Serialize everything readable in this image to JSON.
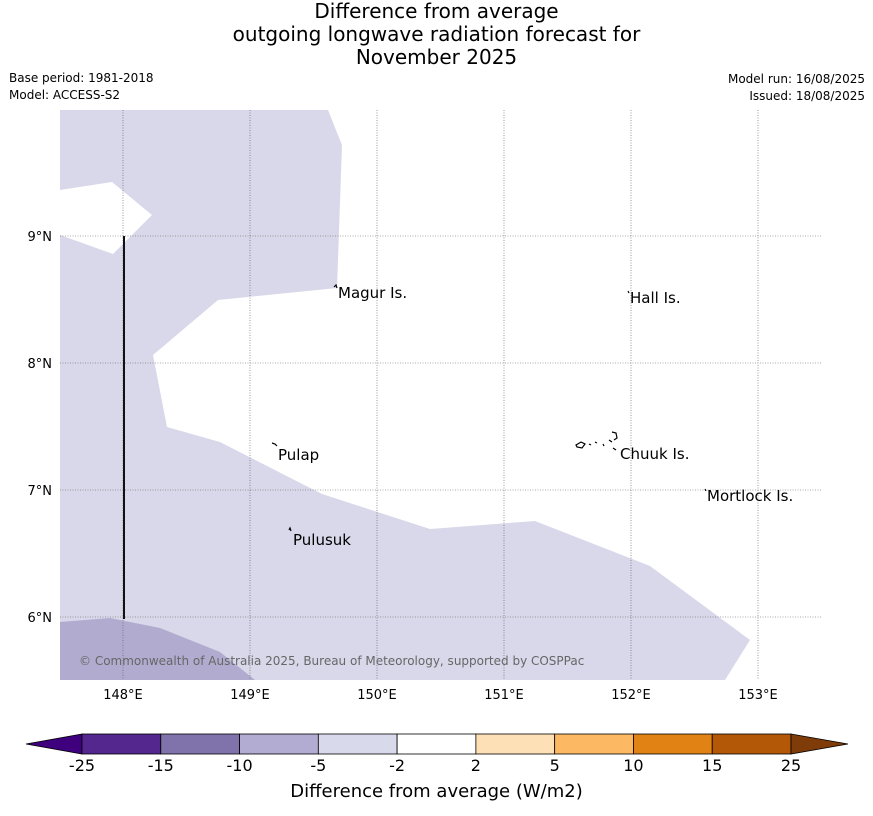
{
  "title": {
    "line1": "Difference from average",
    "line2": "outgoing longwave radiation forecast for",
    "line3": "November 2025"
  },
  "meta": {
    "base_period": "Base period: 1981-2018",
    "model": "Model: ACCESS-S2",
    "model_run": "Model run: 16/08/2025",
    "issued": "Issued: 18/08/2025"
  },
  "map": {
    "longitudes": [
      "148°E",
      "149°E",
      "150°E",
      "151°E",
      "152°E",
      "153°E"
    ],
    "latitudes": [
      "9°N",
      "8°N",
      "7°N",
      "6°N"
    ],
    "places": [
      {
        "name": "Magur Is.",
        "key": "magur"
      },
      {
        "name": "Hall Is.",
        "key": "hall"
      },
      {
        "name": "Pulap",
        "key": "pulap"
      },
      {
        "name": "Chuuk Is.",
        "key": "chuuk"
      },
      {
        "name": "Mortlock Is.",
        "key": "mortlock"
      },
      {
        "name": "Pulusuk",
        "key": "pulusuk"
      }
    ],
    "copyright": "© Commonwealth of Australia 2025, Bureau of Meteorology, supported by COSPPac",
    "fill_colors": {
      "light_purple": "#d8d8ea",
      "mid_purple": "#b1accf"
    }
  },
  "colorbar": {
    "title": "Difference from average (W/m2)",
    "ticks": [
      "-25",
      "-15",
      "-10",
      "-5",
      "-2",
      "2",
      "5",
      "10",
      "15",
      "25"
    ],
    "colors": [
      "#3f007d",
      "#54278f",
      "#8073ac",
      "#b2abd2",
      "#d8daeb",
      "#ffffff",
      "#fee0b6",
      "#fdb863",
      "#e08214",
      "#b35806",
      "#7f3b08"
    ]
  }
}
